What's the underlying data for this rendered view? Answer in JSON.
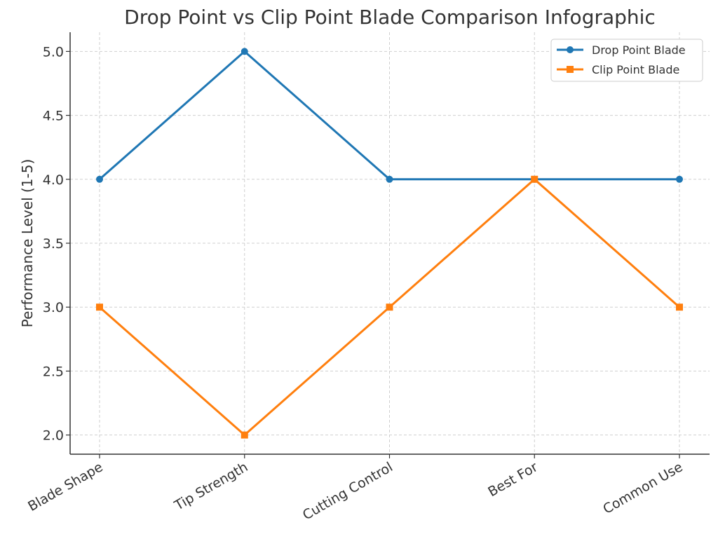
{
  "chart_data": {
    "type": "line",
    "title": "Drop Point vs Clip Point Blade Comparison Infographic",
    "xlabel": "",
    "ylabel": "Performance Level (1-5)",
    "categories": [
      "Blade Shape",
      "Tip Strength",
      "Cutting Control",
      "Best For",
      "Common Use"
    ],
    "yticks": [
      "2.0",
      "2.5",
      "3.0",
      "3.5",
      "4.0",
      "4.5",
      "5.0"
    ],
    "ylim": [
      1.85,
      5.15
    ],
    "grid": true,
    "legend_position": "top-right",
    "series": [
      {
        "name": "Drop Point Blade",
        "values": [
          4,
          5,
          4,
          4,
          4
        ],
        "color": "#1f77b4",
        "marker": "circle"
      },
      {
        "name": "Clip Point Blade",
        "values": [
          3,
          2,
          3,
          4,
          3
        ],
        "color": "#ff7f0e",
        "marker": "square"
      }
    ]
  }
}
